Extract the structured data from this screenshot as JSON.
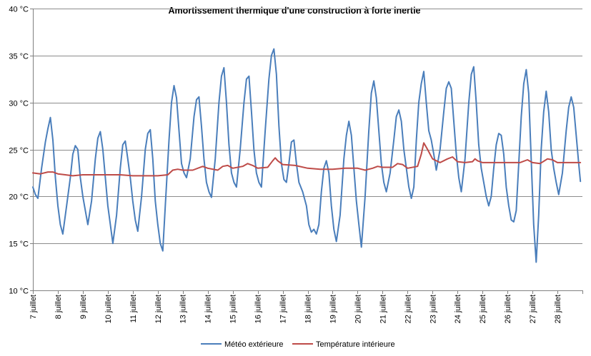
{
  "chart_data": {
    "type": "line",
    "title": "Amortissement thermique d'une construction à forte inertie",
    "xlabel": "",
    "ylabel": "",
    "ylim": [
      10,
      40
    ],
    "y_ticks": [
      {
        "value": 10,
        "label": "10 °C"
      },
      {
        "value": 15,
        "label": "15 °C"
      },
      {
        "value": 20,
        "label": "20 °C"
      },
      {
        "value": 25,
        "label": "25 °C"
      },
      {
        "value": 30,
        "label": "30 °C"
      },
      {
        "value": 35,
        "label": "35 °C"
      },
      {
        "value": 40,
        "label": "40 °C"
      }
    ],
    "xlim": [
      7,
      29
    ],
    "x_ticks": [
      {
        "value": 7,
        "label": "7 juillet"
      },
      {
        "value": 8,
        "label": "8 juillet"
      },
      {
        "value": 9,
        "label": "9 juillet"
      },
      {
        "value": 10,
        "label": "10 juillet"
      },
      {
        "value": 11,
        "label": "11 juillet"
      },
      {
        "value": 12,
        "label": "12 juillet"
      },
      {
        "value": 13,
        "label": "13 juillet"
      },
      {
        "value": 14,
        "label": "14 juillet"
      },
      {
        "value": 15,
        "label": "15 juillet"
      },
      {
        "value": 16,
        "label": "16 juillet"
      },
      {
        "value": 17,
        "label": "17 juillet"
      },
      {
        "value": 18,
        "label": "18 juillet"
      },
      {
        "value": 19,
        "label": "19 juillet"
      },
      {
        "value": 20,
        "label": "20 juillet"
      },
      {
        "value": 21,
        "label": "21 juillet"
      },
      {
        "value": 22,
        "label": "22 juillet"
      },
      {
        "value": 23,
        "label": "23 juillet"
      },
      {
        "value": 24,
        "label": "24 juillet"
      },
      {
        "value": 25,
        "label": "25 juillet"
      },
      {
        "value": 26,
        "label": "26 juillet"
      },
      {
        "value": 27,
        "label": "27 juillet"
      },
      {
        "value": 28,
        "label": "28 juillet"
      }
    ],
    "grid": "horizontal",
    "legend_position": "bottom",
    "series": [
      {
        "name": "Météo extérieure",
        "color": "#4a7ebb",
        "points": [
          [
            7.0,
            21.0
          ],
          [
            7.1,
            20.2
          ],
          [
            7.2,
            19.8
          ],
          [
            7.35,
            23.0
          ],
          [
            7.5,
            25.8
          ],
          [
            7.6,
            27.2
          ],
          [
            7.7,
            28.4
          ],
          [
            7.8,
            26.0
          ],
          [
            7.9,
            22.0
          ],
          [
            8.0,
            19.0
          ],
          [
            8.1,
            17.0
          ],
          [
            8.2,
            16.0
          ],
          [
            8.35,
            19.0
          ],
          [
            8.5,
            22.0
          ],
          [
            8.6,
            24.5
          ],
          [
            8.7,
            25.4
          ],
          [
            8.8,
            25.0
          ],
          [
            8.9,
            22.0
          ],
          [
            9.0,
            20.0
          ],
          [
            9.1,
            18.5
          ],
          [
            9.2,
            17.0
          ],
          [
            9.35,
            19.5
          ],
          [
            9.5,
            24.0
          ],
          [
            9.6,
            26.2
          ],
          [
            9.7,
            26.9
          ],
          [
            9.8,
            25.0
          ],
          [
            9.9,
            22.0
          ],
          [
            10.0,
            19.0
          ],
          [
            10.1,
            17.0
          ],
          [
            10.2,
            15.0
          ],
          [
            10.35,
            18.0
          ],
          [
            10.5,
            23.0
          ],
          [
            10.6,
            25.5
          ],
          [
            10.7,
            25.9
          ],
          [
            10.8,
            24.0
          ],
          [
            10.9,
            22.0
          ],
          [
            11.0,
            19.5
          ],
          [
            11.1,
            17.5
          ],
          [
            11.2,
            16.3
          ],
          [
            11.35,
            20.0
          ],
          [
            11.5,
            25.0
          ],
          [
            11.6,
            26.7
          ],
          [
            11.7,
            27.1
          ],
          [
            11.8,
            24.0
          ],
          [
            11.9,
            19.5
          ],
          [
            12.0,
            17.0
          ],
          [
            12.1,
            15.0
          ],
          [
            12.2,
            14.2
          ],
          [
            12.3,
            19.0
          ],
          [
            12.45,
            26.0
          ],
          [
            12.55,
            30.0
          ],
          [
            12.65,
            31.8
          ],
          [
            12.75,
            30.5
          ],
          [
            12.85,
            27.0
          ],
          [
            12.95,
            23.5
          ],
          [
            13.05,
            22.5
          ],
          [
            13.15,
            22.0
          ],
          [
            13.3,
            24.0
          ],
          [
            13.45,
            28.5
          ],
          [
            13.55,
            30.3
          ],
          [
            13.65,
            30.6
          ],
          [
            13.75,
            27.5
          ],
          [
            13.85,
            24.0
          ],
          [
            13.95,
            21.5
          ],
          [
            14.05,
            20.5
          ],
          [
            14.15,
            19.9
          ],
          [
            14.3,
            24.0
          ],
          [
            14.45,
            30.0
          ],
          [
            14.55,
            32.8
          ],
          [
            14.65,
            33.7
          ],
          [
            14.75,
            30.0
          ],
          [
            14.85,
            25.5
          ],
          [
            14.95,
            22.5
          ],
          [
            15.05,
            21.5
          ],
          [
            15.15,
            21.0
          ],
          [
            15.3,
            25.0
          ],
          [
            15.45,
            30.0
          ],
          [
            15.55,
            32.5
          ],
          [
            15.65,
            32.8
          ],
          [
            15.75,
            29.0
          ],
          [
            15.85,
            25.0
          ],
          [
            15.95,
            22.5
          ],
          [
            16.05,
            21.5
          ],
          [
            16.15,
            21.0
          ],
          [
            16.3,
            27.0
          ],
          [
            16.45,
            32.5
          ],
          [
            16.55,
            35.0
          ],
          [
            16.65,
            35.7
          ],
          [
            16.75,
            33.0
          ],
          [
            16.85,
            27.5
          ],
          [
            16.95,
            23.5
          ],
          [
            17.05,
            21.8
          ],
          [
            17.15,
            21.5
          ],
          [
            17.25,
            23.5
          ],
          [
            17.35,
            25.8
          ],
          [
            17.45,
            26.0
          ],
          [
            17.55,
            23.5
          ],
          [
            17.65,
            21.5
          ],
          [
            17.8,
            20.5
          ],
          [
            17.95,
            19.0
          ],
          [
            18.05,
            17.0
          ],
          [
            18.15,
            16.2
          ],
          [
            18.25,
            16.5
          ],
          [
            18.35,
            16.0
          ],
          [
            18.45,
            17.0
          ],
          [
            18.55,
            20.5
          ],
          [
            18.65,
            23.0
          ],
          [
            18.75,
            23.8
          ],
          [
            18.85,
            22.5
          ],
          [
            18.95,
            19.0
          ],
          [
            19.05,
            16.5
          ],
          [
            19.15,
            15.2
          ],
          [
            19.3,
            18.0
          ],
          [
            19.45,
            24.0
          ],
          [
            19.55,
            26.5
          ],
          [
            19.65,
            28.0
          ],
          [
            19.75,
            26.5
          ],
          [
            19.85,
            23.0
          ],
          [
            19.95,
            19.5
          ],
          [
            20.05,
            17.0
          ],
          [
            20.15,
            14.6
          ],
          [
            20.3,
            20.0
          ],
          [
            20.45,
            27.0
          ],
          [
            20.55,
            31.0
          ],
          [
            20.65,
            32.3
          ],
          [
            20.75,
            30.5
          ],
          [
            20.85,
            27.0
          ],
          [
            20.95,
            23.5
          ],
          [
            21.05,
            21.5
          ],
          [
            21.15,
            20.5
          ],
          [
            21.3,
            22.5
          ],
          [
            21.45,
            26.0
          ],
          [
            21.55,
            28.5
          ],
          [
            21.65,
            29.2
          ],
          [
            21.75,
            28.0
          ],
          [
            21.85,
            25.0
          ],
          [
            21.95,
            23.0
          ],
          [
            22.05,
            21.0
          ],
          [
            22.15,
            19.8
          ],
          [
            22.25,
            21.0
          ],
          [
            22.35,
            26.0
          ],
          [
            22.45,
            30.0
          ],
          [
            22.55,
            32.0
          ],
          [
            22.65,
            33.3
          ],
          [
            22.75,
            30.0
          ],
          [
            22.85,
            27.0
          ],
          [
            22.95,
            26.0
          ],
          [
            23.05,
            24.5
          ],
          [
            23.15,
            22.8
          ],
          [
            23.3,
            25.0
          ],
          [
            23.45,
            29.0
          ],
          [
            23.55,
            31.5
          ],
          [
            23.65,
            32.2
          ],
          [
            23.75,
            31.5
          ],
          [
            23.85,
            28.0
          ],
          [
            23.95,
            24.5
          ],
          [
            24.05,
            22.0
          ],
          [
            24.15,
            20.5
          ],
          [
            24.3,
            24.0
          ],
          [
            24.45,
            30.0
          ],
          [
            24.55,
            33.0
          ],
          [
            24.65,
            33.8
          ],
          [
            24.75,
            30.0
          ],
          [
            24.85,
            25.5
          ],
          [
            24.95,
            23.0
          ],
          [
            25.05,
            21.5
          ],
          [
            25.15,
            20.0
          ],
          [
            25.25,
            19.0
          ],
          [
            25.35,
            20.0
          ],
          [
            25.45,
            23.0
          ],
          [
            25.55,
            25.5
          ],
          [
            25.65,
            26.7
          ],
          [
            25.75,
            26.5
          ],
          [
            25.85,
            24.5
          ],
          [
            25.95,
            21.0
          ],
          [
            26.05,
            19.0
          ],
          [
            26.15,
            17.5
          ],
          [
            26.25,
            17.3
          ],
          [
            26.35,
            18.5
          ],
          [
            26.45,
            23.5
          ],
          [
            26.55,
            28.5
          ],
          [
            26.65,
            32.0
          ],
          [
            26.75,
            33.5
          ],
          [
            26.85,
            31.0
          ],
          [
            26.95,
            24.0
          ],
          [
            27.05,
            17.0
          ],
          [
            27.15,
            13.0
          ],
          [
            27.25,
            18.0
          ],
          [
            27.35,
            25.0
          ],
          [
            27.45,
            29.0
          ],
          [
            27.55,
            31.2
          ],
          [
            27.65,
            29.0
          ],
          [
            27.75,
            25.0
          ],
          [
            27.85,
            23.0
          ],
          [
            27.95,
            21.5
          ],
          [
            28.05,
            20.2
          ],
          [
            28.2,
            22.5
          ],
          [
            28.35,
            27.0
          ],
          [
            28.45,
            29.5
          ],
          [
            28.55,
            30.6
          ],
          [
            28.65,
            29.5
          ],
          [
            28.75,
            26.5
          ],
          [
            28.85,
            23.5
          ],
          [
            28.92,
            21.6
          ]
        ]
      },
      {
        "name": "Température intérieure",
        "color": "#be4b48",
        "points": [
          [
            7.0,
            22.5
          ],
          [
            7.3,
            22.4
          ],
          [
            7.6,
            22.6
          ],
          [
            7.8,
            22.6
          ],
          [
            8.0,
            22.4
          ],
          [
            8.3,
            22.3
          ],
          [
            8.6,
            22.2
          ],
          [
            9.0,
            22.3
          ],
          [
            9.5,
            22.3
          ],
          [
            10.0,
            22.3
          ],
          [
            10.5,
            22.3
          ],
          [
            11.0,
            22.2
          ],
          [
            11.5,
            22.2
          ],
          [
            12.0,
            22.2
          ],
          [
            12.4,
            22.3
          ],
          [
            12.6,
            22.8
          ],
          [
            12.8,
            22.9
          ],
          [
            13.0,
            22.8
          ],
          [
            13.4,
            22.8
          ],
          [
            13.8,
            23.2
          ],
          [
            14.0,
            23.0
          ],
          [
            14.4,
            22.8
          ],
          [
            14.6,
            23.2
          ],
          [
            14.8,
            23.3
          ],
          [
            15.0,
            23.0
          ],
          [
            15.4,
            23.2
          ],
          [
            15.6,
            23.5
          ],
          [
            15.8,
            23.3
          ],
          [
            16.0,
            23.0
          ],
          [
            16.4,
            23.1
          ],
          [
            16.6,
            23.8
          ],
          [
            16.7,
            24.1
          ],
          [
            16.8,
            23.8
          ],
          [
            17.0,
            23.4
          ],
          [
            17.5,
            23.3
          ],
          [
            18.0,
            23.0
          ],
          [
            18.5,
            22.9
          ],
          [
            19.0,
            22.9
          ],
          [
            19.5,
            23.0
          ],
          [
            20.0,
            23.0
          ],
          [
            20.3,
            22.8
          ],
          [
            20.6,
            23.0
          ],
          [
            20.8,
            23.2
          ],
          [
            21.0,
            23.1
          ],
          [
            21.4,
            23.1
          ],
          [
            21.6,
            23.5
          ],
          [
            21.8,
            23.4
          ],
          [
            22.0,
            23.0
          ],
          [
            22.4,
            23.2
          ],
          [
            22.55,
            24.5
          ],
          [
            22.65,
            25.7
          ],
          [
            22.8,
            25.0
          ],
          [
            23.0,
            24.0
          ],
          [
            23.3,
            23.6
          ],
          [
            23.6,
            24.0
          ],
          [
            23.8,
            24.2
          ],
          [
            24.0,
            23.7
          ],
          [
            24.3,
            23.6
          ],
          [
            24.6,
            23.7
          ],
          [
            24.7,
            24.0
          ],
          [
            24.8,
            23.8
          ],
          [
            25.0,
            23.6
          ],
          [
            25.5,
            23.6
          ],
          [
            26.0,
            23.6
          ],
          [
            26.5,
            23.6
          ],
          [
            26.8,
            23.9
          ],
          [
            27.0,
            23.6
          ],
          [
            27.3,
            23.5
          ],
          [
            27.6,
            24.0
          ],
          [
            27.8,
            23.9
          ],
          [
            28.0,
            23.6
          ],
          [
            28.5,
            23.6
          ],
          [
            28.92,
            23.6
          ]
        ]
      }
    ]
  }
}
